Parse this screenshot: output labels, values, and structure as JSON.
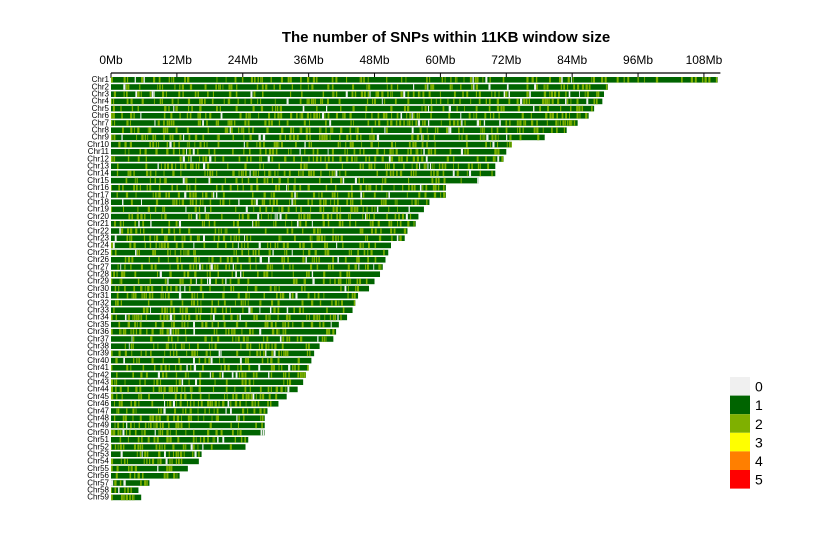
{
  "chart_data": {
    "type": "heatmap",
    "title": "The number of SNPs within 11KB window size",
    "x_ticks": [
      "0Mb",
      "12Mb",
      "24Mb",
      "36Mb",
      "48Mb",
      "60Mb",
      "72Mb",
      "84Mb",
      "96Mb",
      "108Mb"
    ],
    "x_tick_values": [
      0,
      12,
      24,
      36,
      48,
      60,
      72,
      84,
      96,
      108
    ],
    "xlim": [
      0,
      111
    ],
    "chromosomes": [
      {
        "name": "Chr1",
        "length": 110.5
      },
      {
        "name": "Chr2",
        "length": 90.5
      },
      {
        "name": "Chr3",
        "length": 89.8
      },
      {
        "name": "Chr4",
        "length": 89.5
      },
      {
        "name": "Chr5",
        "length": 88.0
      },
      {
        "name": "Chr6",
        "length": 87.0
      },
      {
        "name": "Chr7",
        "length": 85.0
      },
      {
        "name": "Chr8",
        "length": 83.0
      },
      {
        "name": "Chr9",
        "length": 79.0
      },
      {
        "name": "Chr10",
        "length": 73.0
      },
      {
        "name": "Chr11",
        "length": 72.0
      },
      {
        "name": "Chr12",
        "length": 71.5
      },
      {
        "name": "Chr13",
        "length": 70.0
      },
      {
        "name": "Chr14",
        "length": 70.0
      },
      {
        "name": "Chr15",
        "length": 67.0
      },
      {
        "name": "Chr16",
        "length": 61.0
      },
      {
        "name": "Chr17",
        "length": 61.0
      },
      {
        "name": "Chr18",
        "length": 58.0
      },
      {
        "name": "Chr19",
        "length": 57.0
      },
      {
        "name": "Chr20",
        "length": 56.0
      },
      {
        "name": "Chr21",
        "length": 55.5
      },
      {
        "name": "Chr22",
        "length": 54.0
      },
      {
        "name": "Chr23",
        "length": 53.5
      },
      {
        "name": "Chr24",
        "length": 51.0
      },
      {
        "name": "Chr25",
        "length": 50.5
      },
      {
        "name": "Chr26",
        "length": 50.0
      },
      {
        "name": "Chr27",
        "length": 49.5
      },
      {
        "name": "Chr28",
        "length": 49.0
      },
      {
        "name": "Chr29",
        "length": 48.0
      },
      {
        "name": "Chr30",
        "length": 47.0
      },
      {
        "name": "Chr31",
        "length": 45.0
      },
      {
        "name": "Chr32",
        "length": 44.5
      },
      {
        "name": "Chr33",
        "length": 44.0
      },
      {
        "name": "Chr34",
        "length": 43.0
      },
      {
        "name": "Chr35",
        "length": 41.5
      },
      {
        "name": "Chr36",
        "length": 41.0
      },
      {
        "name": "Chr37",
        "length": 40.5
      },
      {
        "name": "Chr38",
        "length": 38.0
      },
      {
        "name": "Chr39",
        "length": 37.0
      },
      {
        "name": "Chr40",
        "length": 36.5
      },
      {
        "name": "Chr41",
        "length": 36.0
      },
      {
        "name": "Chr42",
        "length": 35.5
      },
      {
        "name": "Chr43",
        "length": 35.0
      },
      {
        "name": "Chr44",
        "length": 34.0
      },
      {
        "name": "Chr45",
        "length": 32.0
      },
      {
        "name": "Chr46",
        "length": 30.5
      },
      {
        "name": "Chr47",
        "length": 28.5
      },
      {
        "name": "Chr48",
        "length": 28.0
      },
      {
        "name": "Chr49",
        "length": 28.0
      },
      {
        "name": "Chr50",
        "length": 28.0
      },
      {
        "name": "Chr51",
        "length": 25.0
      },
      {
        "name": "Chr52",
        "length": 24.5
      },
      {
        "name": "Chr53",
        "length": 16.5
      },
      {
        "name": "Chr54",
        "length": 16.0
      },
      {
        "name": "Chr55",
        "length": 14.0
      },
      {
        "name": "Chr56",
        "length": 12.5
      },
      {
        "name": "Chr57",
        "length": 7.0
      },
      {
        "name": "Chr58",
        "length": 5.0
      },
      {
        "name": "Chr59",
        "length": 5.5
      }
    ],
    "legend": [
      {
        "label": "0",
        "color": "#f0f0f0"
      },
      {
        "label": "1",
        "color": "#006400"
      },
      {
        "label": "2",
        "color": "#7fb000"
      },
      {
        "label": "3",
        "color": "#ffff00"
      },
      {
        "label": "4",
        "color": "#ff7f00"
      },
      {
        "label": "5",
        "color": "#ff0000"
      }
    ],
    "legend_placement": "bottom-right",
    "grid": false
  }
}
